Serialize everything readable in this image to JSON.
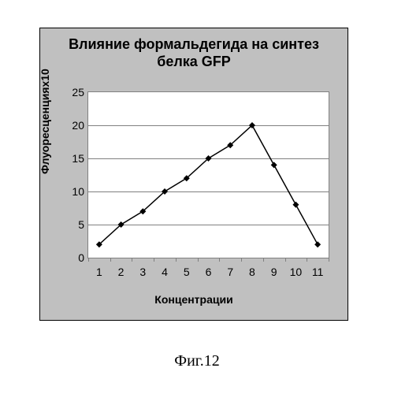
{
  "figure": {
    "caption": "Фиг.12",
    "panel_bg": "#c0c0c0",
    "plot_bg": "#ffffff",
    "border_color": "#000000",
    "grid_color": "#808080"
  },
  "chart": {
    "type": "line",
    "title": "Влияние формальдегида на синтез белка GFP",
    "title_fontsize": 18,
    "xlabel": "Концентрации",
    "ylabel": "Флуоресценциях10",
    "label_fontsize": 14,
    "x_categories": [
      "1",
      "2",
      "3",
      "4",
      "5",
      "6",
      "7",
      "8",
      "9",
      "10",
      "11"
    ],
    "y_values": [
      2,
      5,
      7,
      10,
      12,
      15,
      17,
      20,
      14,
      8,
      2
    ],
    "ylim": [
      0,
      25
    ],
    "ytick_step": 5,
    "yticks": [
      0,
      5,
      10,
      15,
      20,
      25
    ],
    "line_color": "#000000",
    "marker_color": "#000000",
    "marker_style": "diamond",
    "marker_size": 6,
    "line_width": 1.5,
    "grid_color": "#808080",
    "background_color": "#ffffff",
    "tick_fontsize": 14
  }
}
